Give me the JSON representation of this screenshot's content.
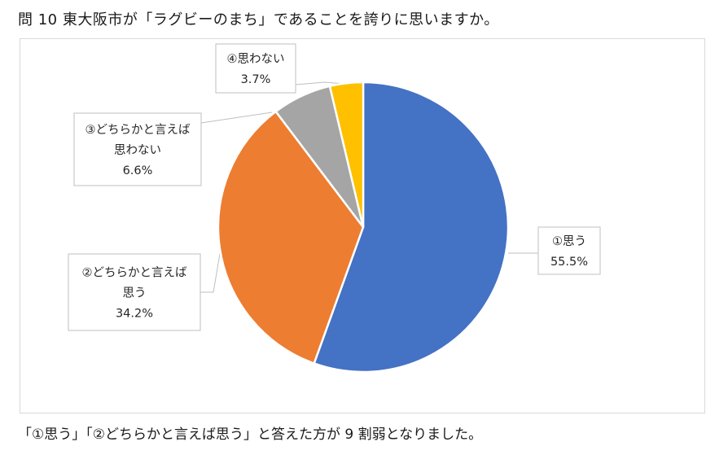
{
  "question": "問 10 東大阪市が「ラグビーのまち」であることを誇りに思いますか。",
  "summary": "「①思う」「②どちらかと言えば思う」と答えた方が 9 割弱となりました。",
  "chart_data": {
    "type": "pie",
    "title": "",
    "slices": [
      {
        "label_lines": [
          "①思う"
        ],
        "value": 55.5,
        "value_label": "55.5%",
        "color": "#4472c4"
      },
      {
        "label_lines": [
          "②どちらかと言えば",
          "思う"
        ],
        "value": 34.2,
        "value_label": "34.2%",
        "color": "#ed7d31"
      },
      {
        "label_lines": [
          "③どちらかと言えば",
          "思わない"
        ],
        "value": 6.6,
        "value_label": "6.6%",
        "color": "#a5a5a5"
      },
      {
        "label_lines": [
          "④思わない"
        ],
        "value": 3.7,
        "value_label": "3.7%",
        "color": "#ffc000"
      }
    ],
    "start": "12 o'clock",
    "direction": "clockwise",
    "legend": "none",
    "data_labels": "callout"
  }
}
